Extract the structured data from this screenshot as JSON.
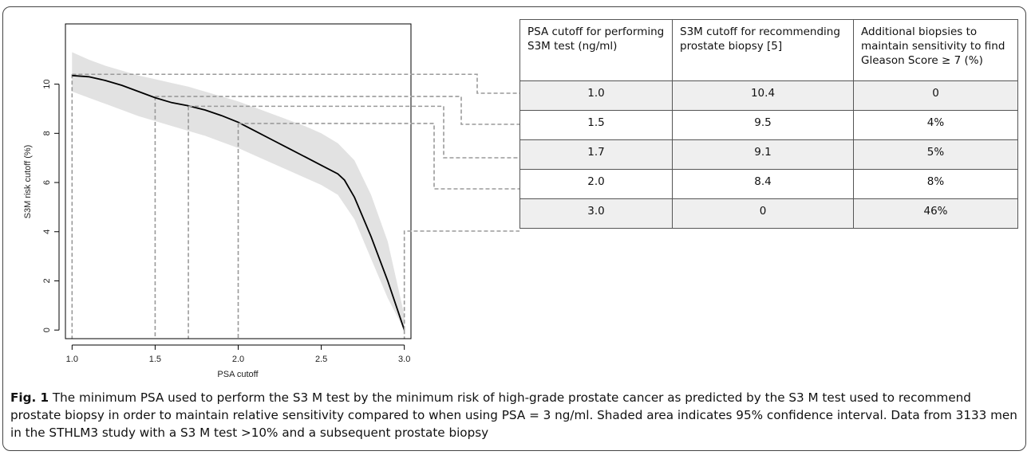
{
  "chart_data": {
    "type": "line",
    "xlabel": "PSA cutoff",
    "ylabel": "S3M risk cutoff (%)",
    "xlim": [
      0.96,
      3.04
    ],
    "ylim": [
      -0.35,
      12.45
    ],
    "xticks": [
      1.0,
      1.5,
      2.0,
      2.5,
      3.0
    ],
    "yticks": [
      0,
      2,
      4,
      6,
      8,
      10
    ],
    "xtick_labels": [
      "1.0",
      "1.5",
      "2.0",
      "2.5",
      "3.0"
    ],
    "ytick_labels": [
      "0",
      "2",
      "4",
      "6",
      "8",
      "10"
    ],
    "grid": false,
    "series": [
      {
        "x": [
          1.0,
          1.1,
          1.2,
          1.3,
          1.4,
          1.5,
          1.6,
          1.7,
          1.8,
          1.9,
          2.0,
          2.1,
          2.2,
          2.3,
          2.4,
          2.5,
          2.6,
          2.64,
          2.7,
          2.8,
          2.9,
          3.0
        ],
        "y": [
          10.35,
          10.3,
          10.15,
          9.95,
          9.7,
          9.45,
          9.25,
          9.12,
          8.95,
          8.72,
          8.45,
          8.1,
          7.75,
          7.4,
          7.05,
          6.7,
          6.35,
          6.1,
          5.4,
          3.8,
          2.0,
          0.0
        ],
        "color": "#000000"
      }
    ],
    "confidence_band": {
      "x": [
        1.0,
        1.1,
        1.2,
        1.3,
        1.4,
        1.5,
        1.6,
        1.7,
        1.8,
        1.9,
        2.0,
        2.1,
        2.2,
        2.3,
        2.4,
        2.5,
        2.6,
        2.7,
        2.8,
        2.9,
        3.0
      ],
      "lower": [
        9.7,
        9.45,
        9.2,
        8.95,
        8.7,
        8.5,
        8.3,
        8.1,
        7.9,
        7.65,
        7.4,
        7.1,
        6.8,
        6.5,
        6.2,
        5.9,
        5.5,
        4.5,
        2.9,
        1.3,
        0.0
      ],
      "upper": [
        11.3,
        11.0,
        10.75,
        10.55,
        10.35,
        10.2,
        10.05,
        9.9,
        9.7,
        9.5,
        9.3,
        9.05,
        8.8,
        8.55,
        8.3,
        8.0,
        7.6,
        6.9,
        5.5,
        3.6,
        0.6
      ],
      "color": "#e2e2e2"
    },
    "reference_points": [
      {
        "x": 1.0,
        "y": 10.4
      },
      {
        "x": 1.5,
        "y": 9.5
      },
      {
        "x": 1.7,
        "y": 9.1
      },
      {
        "x": 2.0,
        "y": 8.4
      },
      {
        "x": 3.0,
        "y": 0.0
      }
    ]
  },
  "table": {
    "headers": [
      "PSA cutoff for performing S3M test (ng/ml)",
      "S3M cutoff for recommending prostate biopsy [5]",
      "Additional biopsies to maintain sensitivity to find Gleason Score ≥ 7 (%)"
    ],
    "rows": [
      [
        "1.0",
        "10.4",
        "0"
      ],
      [
        "1.5",
        "9.5",
        "4%"
      ],
      [
        "1.7",
        "9.1",
        "5%"
      ],
      [
        "2.0",
        "8.4",
        "8%"
      ],
      [
        "3.0",
        "0",
        "46%"
      ]
    ]
  },
  "caption": {
    "label": "Fig. 1",
    "text": " The minimum PSA used to perform the S3 M test by the minimum risk of high-grade prostate cancer as predicted by the S3 M test used to recommend prostate biopsy in order to maintain relative sensitivity compared to when using PSA = 3 ng/ml. Shaded area indicates 95% confidence interval. Data from 3133 men in the STHLM3 study with a S3 M test >10% and a subsequent prostate biopsy"
  },
  "colors": {
    "band": "#e2e2e2",
    "curve": "#000000",
    "guide": "#9a9a9a",
    "row_shade": "#efefef",
    "frame": "#444444"
  }
}
